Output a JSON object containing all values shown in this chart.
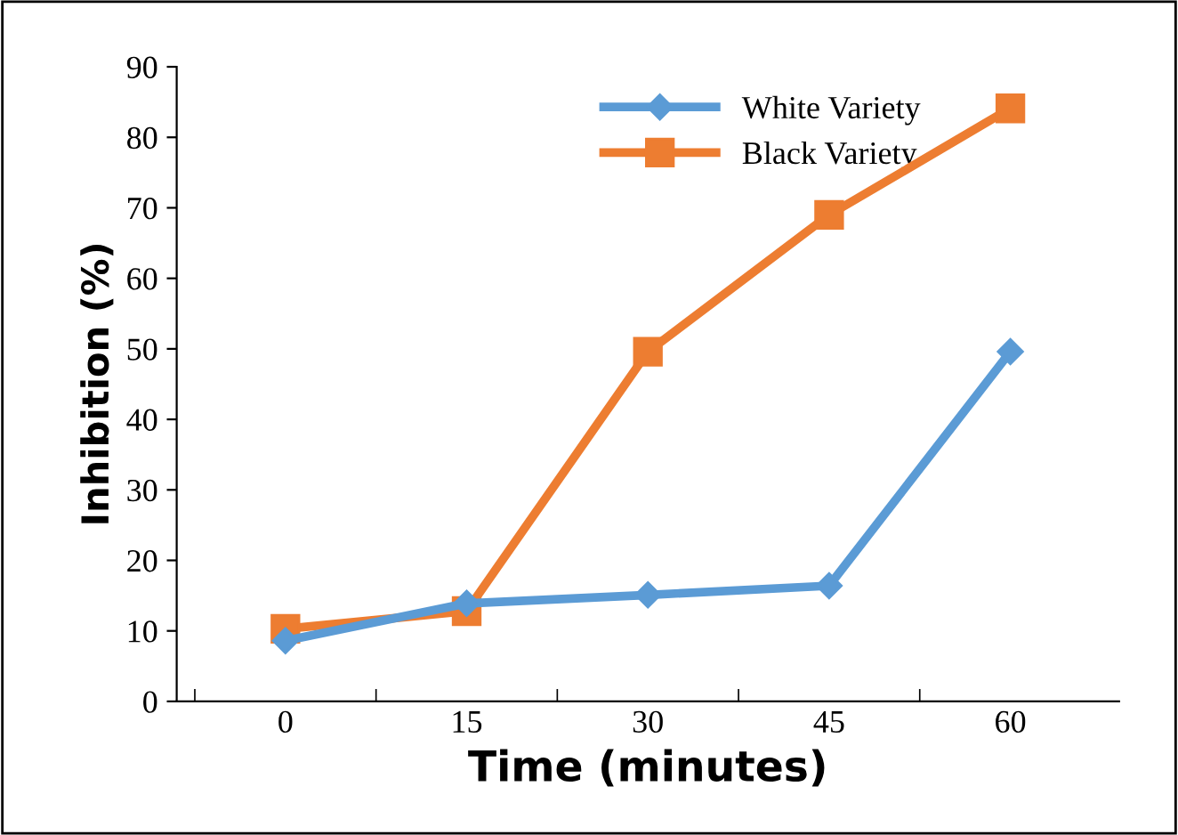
{
  "chart_data": {
    "type": "line",
    "xlabel": "Time (minutes)",
    "ylabel": "Inhibition (%)",
    "categories": [
      "0",
      "15",
      "30",
      "45",
      "60"
    ],
    "series": [
      {
        "name": "White Variety",
        "color": "#5b9bd5",
        "marker": "diamond",
        "values": [
          8.6,
          13.9,
          15.1,
          16.4,
          49.6
        ]
      },
      {
        "name": "Black Variety",
        "color": "#ed7d31",
        "marker": "square",
        "values": [
          10.3,
          12.8,
          49.6,
          69.0,
          84.1
        ]
      }
    ],
    "ylim": [
      0,
      90
    ],
    "yticks": [
      0,
      10,
      20,
      30,
      40,
      50,
      60,
      70,
      80,
      90
    ],
    "grid": false,
    "legend": "top right",
    "line_style": "solid"
  }
}
